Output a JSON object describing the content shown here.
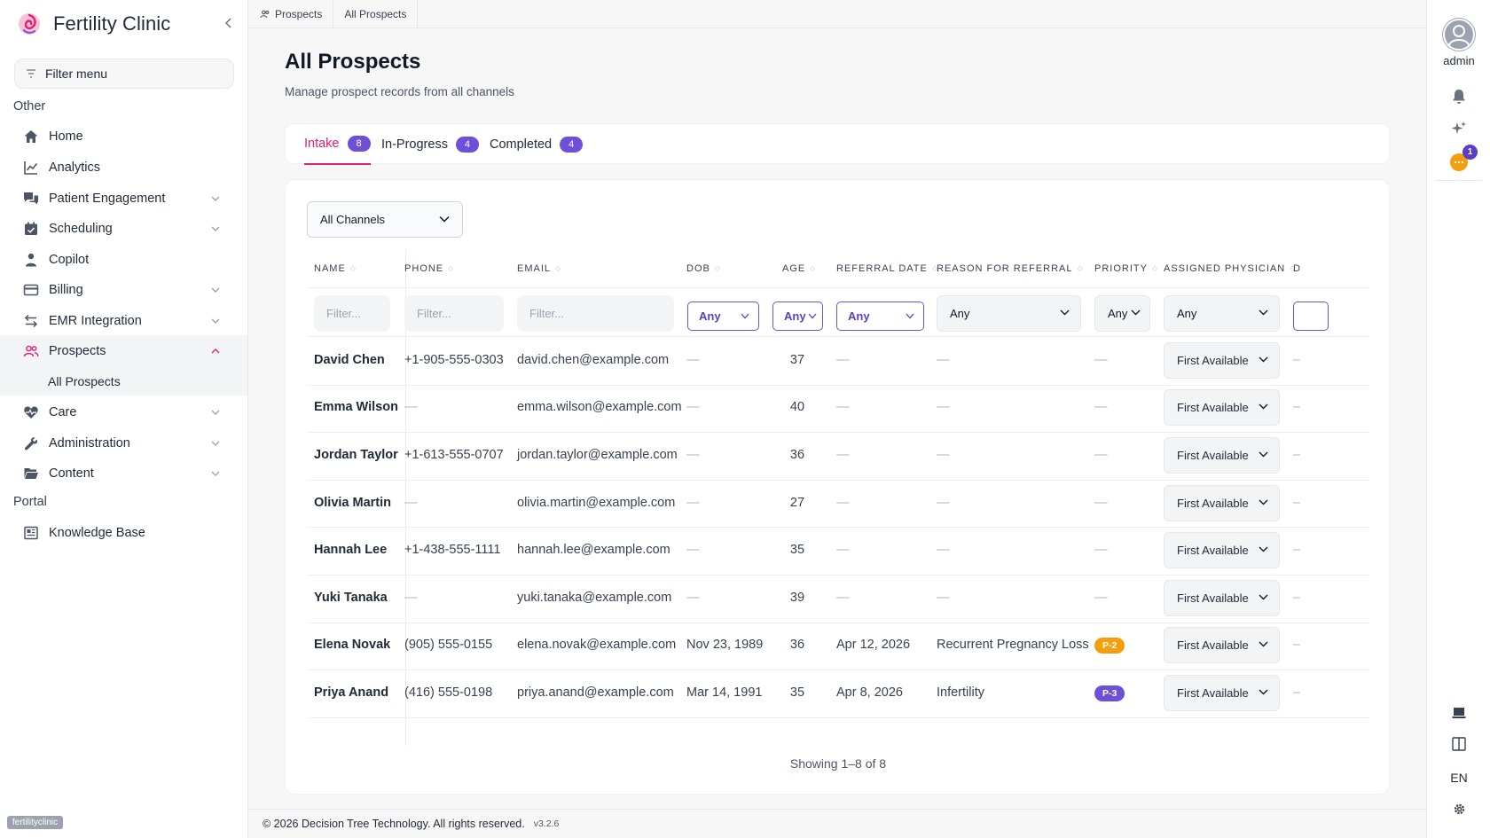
{
  "app": {
    "title": "Fertility Clinic",
    "tenant": "fertilityclinic"
  },
  "sidebar": {
    "filter_label": "Filter menu",
    "sections": [
      {
        "title": "Other"
      },
      {
        "title": "Portal"
      }
    ],
    "items": [
      {
        "label": "Home",
        "icon": "home-icon"
      },
      {
        "label": "Analytics",
        "icon": "chart-line-icon"
      },
      {
        "label": "Patient Engagement",
        "icon": "chat-bubbles-icon"
      },
      {
        "label": "Scheduling",
        "icon": "calendar-icon"
      },
      {
        "label": "Copilot",
        "icon": "user-icon"
      },
      {
        "label": "Billing",
        "icon": "credit-card-icon"
      },
      {
        "label": "EMR Integration",
        "icon": "arrows-exchange-icon"
      },
      {
        "label": "Prospects",
        "icon": "users-icon",
        "active": true
      },
      {
        "label": "Care",
        "icon": "heart-pulse-icon"
      },
      {
        "label": "Administration",
        "icon": "wrench-icon"
      },
      {
        "label": "Content",
        "icon": "folder-open-icon"
      },
      {
        "label": "Knowledge Base",
        "icon": "newspaper-icon"
      }
    ],
    "sub_active": "All Prospects"
  },
  "breadcrumb": [
    "Prospects",
    "All Prospects"
  ],
  "page": {
    "title": "All Prospects",
    "subtitle": "Manage prospect records from all channels"
  },
  "tabs": [
    {
      "label": "Intake",
      "count": "8",
      "active": true
    },
    {
      "label": "In-Progress",
      "count": "4"
    },
    {
      "label": "Completed",
      "count": "4"
    }
  ],
  "channel_filter": "All Channels",
  "table": {
    "columns": [
      "Name",
      "Phone",
      "Email",
      "DOB",
      "Age",
      "Referral Date",
      "Reason for Referral",
      "Priority",
      "Assigned Physician",
      "D"
    ],
    "filters": {
      "text_placeholder": "Filter...",
      "any": "Any"
    },
    "rows": [
      {
        "name": "David Chen",
        "phone": "+1-905-555-0303",
        "email": "david.chen@example.com",
        "dob": "—",
        "age": "37",
        "referral_date": "—",
        "reason": "—",
        "priority": "—",
        "physician": "First Available"
      },
      {
        "name": "Emma Wilson",
        "phone": "—",
        "email": "emma.wilson@example.com",
        "dob": "—",
        "age": "40",
        "referral_date": "—",
        "reason": "—",
        "priority": "—",
        "physician": "First Available"
      },
      {
        "name": "Jordan Taylor",
        "phone": "+1-613-555-0707",
        "email": "jordan.taylor@example.com",
        "dob": "—",
        "age": "36",
        "referral_date": "—",
        "reason": "—",
        "priority": "—",
        "physician": "First Available"
      },
      {
        "name": "Olivia Martin",
        "phone": "—",
        "email": "olivia.martin@example.com",
        "dob": "—",
        "age": "27",
        "referral_date": "—",
        "reason": "—",
        "priority": "—",
        "physician": "First Available"
      },
      {
        "name": "Hannah Lee",
        "phone": "+1-438-555-1111",
        "email": "hannah.lee@example.com",
        "dob": "—",
        "age": "35",
        "referral_date": "—",
        "reason": "—",
        "priority": "—",
        "physician": "First Available"
      },
      {
        "name": "Yuki Tanaka",
        "phone": "—",
        "email": "yuki.tanaka@example.com",
        "dob": "—",
        "age": "39",
        "referral_date": "—",
        "reason": "—",
        "priority": "—",
        "physician": "First Available"
      },
      {
        "name": "Elena Novak",
        "phone": "(905) 555-0155",
        "email": "elena.novak@example.com",
        "dob": "Nov 23, 1989",
        "age": "36",
        "referral_date": "Apr 12, 2026",
        "reason": "Recurrent Pregnancy Loss",
        "priority": "P-2",
        "priority_color": "#f59e0b",
        "physician": "First Available"
      },
      {
        "name": "Priya Anand",
        "phone": "(416) 555-0198",
        "email": "priya.anand@example.com",
        "dob": "Mar 14, 1991",
        "age": "35",
        "referral_date": "Apr 8, 2026",
        "reason": "Infertility",
        "priority": "P-3",
        "priority_color": "#6d4fd8",
        "physician": "First Available"
      }
    ],
    "showing": "Showing 1–8 of 8"
  },
  "footer": {
    "copyright": "© 2026 Decision Tree Technology. All rights reserved.",
    "version": "v3.2.6"
  },
  "rail": {
    "user": "admin",
    "notifications": "1",
    "language": "EN"
  },
  "colors": {
    "accent": "#e11d74",
    "badge": "#6d4fd8"
  }
}
